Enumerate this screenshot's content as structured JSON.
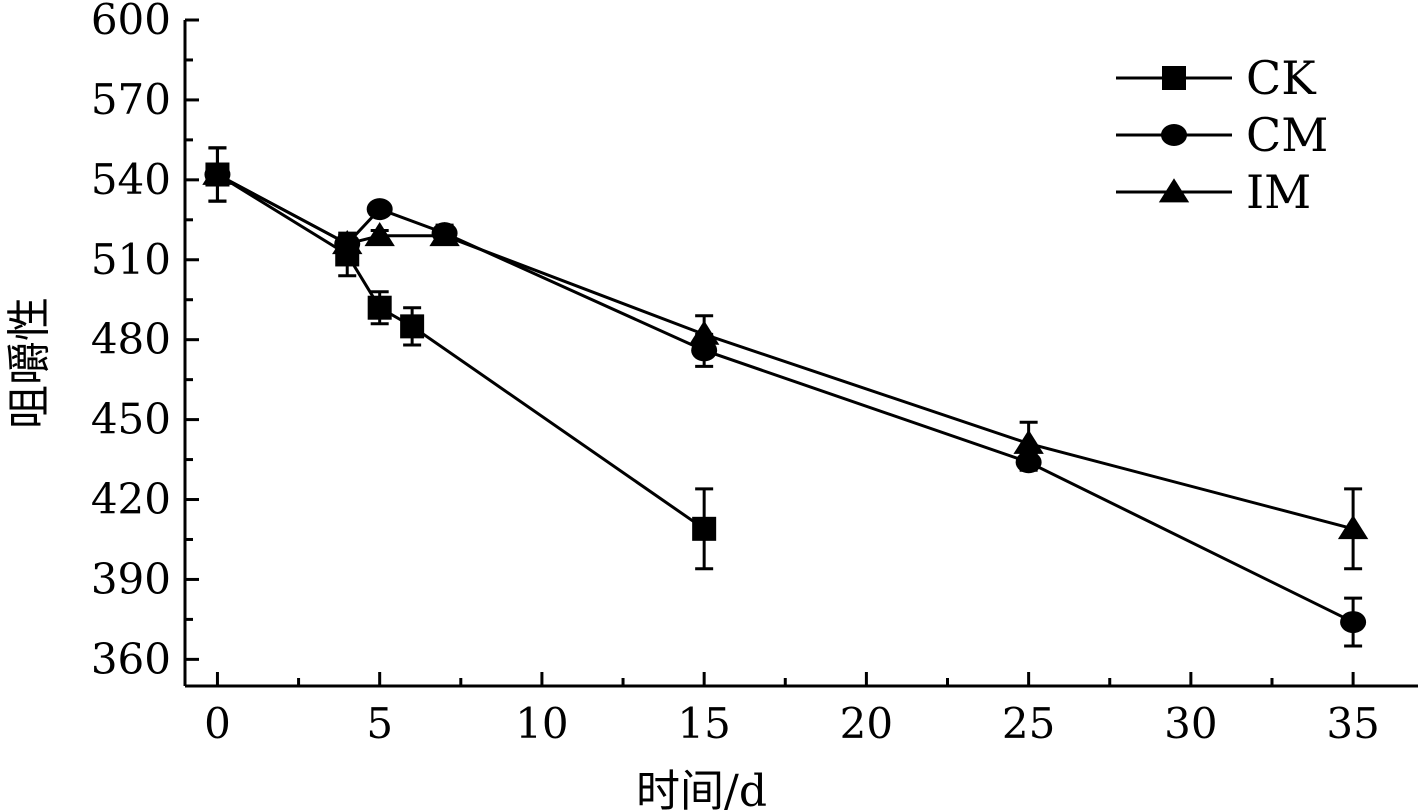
{
  "chart_data": {
    "type": "line",
    "xlabel": "时间/d",
    "ylabel": "咀嚼性",
    "xlim": [
      -1,
      37
    ],
    "ylim": [
      350,
      600
    ],
    "x_ticks": [
      0,
      5,
      10,
      15,
      20,
      25,
      30,
      35
    ],
    "y_ticks": [
      360,
      390,
      420,
      450,
      480,
      510,
      540,
      570,
      600
    ],
    "legend_position": "top-right",
    "series": [
      {
        "name": "CK",
        "marker": "square",
        "x": [
          0,
          4,
          5,
          6,
          15
        ],
        "y": [
          542,
          512,
          492,
          485,
          409
        ],
        "err": [
          10,
          8,
          6,
          7,
          15
        ]
      },
      {
        "name": "CM",
        "marker": "circle",
        "x": [
          0,
          4,
          5,
          7,
          15,
          25,
          35
        ],
        "y": [
          542,
          516,
          529,
          520,
          476,
          434,
          374
        ],
        "err": [
          10,
          3,
          2,
          3,
          6,
          3,
          9
        ]
      },
      {
        "name": "IM",
        "marker": "triangle",
        "x": [
          0,
          4,
          5,
          7,
          15,
          25,
          35
        ],
        "y": [
          542,
          516,
          519,
          519,
          482,
          441,
          409
        ],
        "err": [
          10,
          3,
          2,
          3,
          7,
          8,
          15
        ]
      }
    ]
  }
}
